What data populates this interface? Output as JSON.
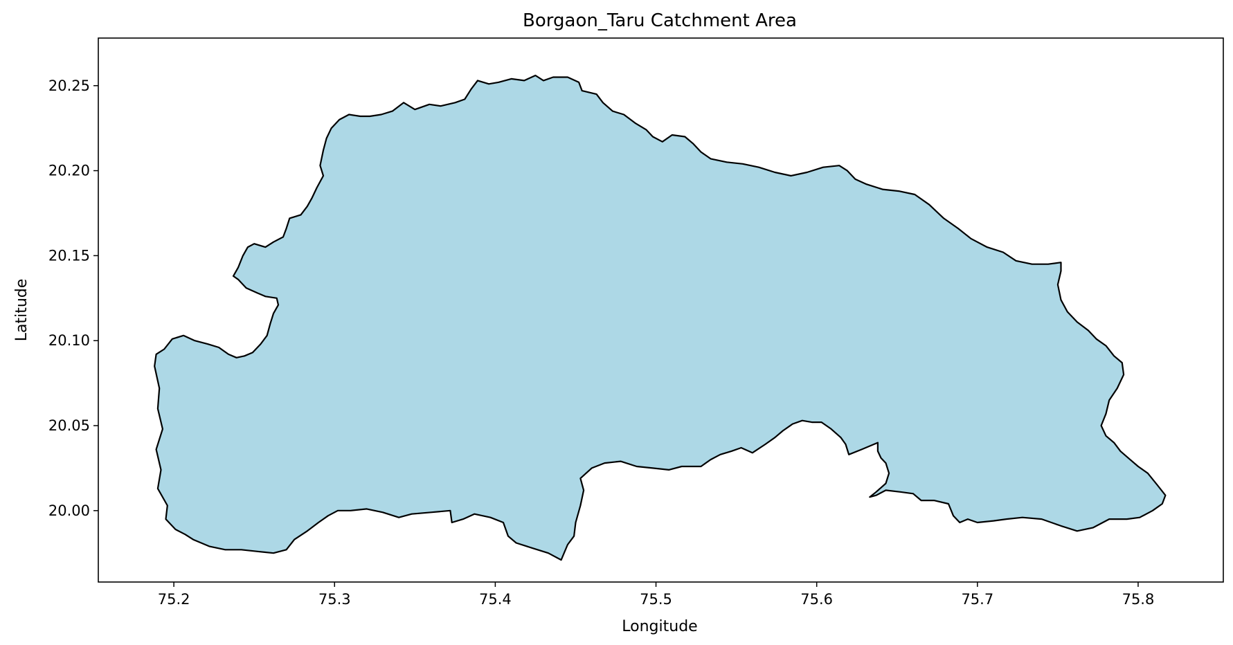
{
  "chart_data": {
    "type": "map",
    "title": "Borgaon_Taru Catchment Area",
    "xlabel": "Longitude",
    "ylabel": "Latitude",
    "xlim": [
      75.153,
      75.853
    ],
    "ylim": [
      19.958,
      20.278
    ],
    "xticks": [
      75.2,
      75.3,
      75.4,
      75.5,
      75.6,
      75.7,
      75.8
    ],
    "yticks": [
      20.0,
      20.05,
      20.1,
      20.15,
      20.2,
      20.25
    ],
    "fill_color": "#ADD8E6",
    "edge_color": "#000000",
    "grid": false,
    "boundary": [
      [
        75.188,
        20.085
      ],
      [
        75.191,
        20.072
      ],
      [
        75.19,
        20.06
      ],
      [
        75.193,
        20.048
      ],
      [
        75.189,
        20.036
      ],
      [
        75.192,
        20.024
      ],
      [
        75.19,
        20.013
      ],
      [
        75.196,
        20.003
      ],
      [
        75.195,
        19.995
      ],
      [
        75.201,
        19.989
      ],
      [
        75.207,
        19.986
      ],
      [
        75.212,
        19.983
      ],
      [
        75.222,
        19.979
      ],
      [
        75.232,
        19.977
      ],
      [
        75.242,
        19.977
      ],
      [
        75.252,
        19.976
      ],
      [
        75.262,
        19.975
      ],
      [
        75.27,
        19.977
      ],
      [
        75.275,
        19.983
      ],
      [
        75.283,
        19.988
      ],
      [
        75.29,
        19.993
      ],
      [
        75.296,
        19.997
      ],
      [
        75.302,
        20.0
      ],
      [
        75.31,
        20.0
      ],
      [
        75.32,
        20.001
      ],
      [
        75.33,
        19.999
      ],
      [
        75.34,
        19.996
      ],
      [
        75.348,
        19.998
      ],
      [
        75.36,
        19.999
      ],
      [
        75.372,
        20.0
      ],
      [
        75.373,
        19.993
      ],
      [
        75.38,
        19.995
      ],
      [
        75.387,
        19.998
      ],
      [
        75.397,
        19.996
      ],
      [
        75.405,
        19.993
      ],
      [
        75.408,
        19.985
      ],
      [
        75.413,
        19.981
      ],
      [
        75.423,
        19.978
      ],
      [
        75.433,
        19.975
      ],
      [
        75.441,
        19.971
      ],
      [
        75.445,
        19.98
      ],
      [
        75.449,
        19.985
      ],
      [
        75.45,
        19.993
      ],
      [
        75.453,
        20.003
      ],
      [
        75.455,
        20.012
      ],
      [
        75.453,
        20.019
      ],
      [
        75.46,
        20.025
      ],
      [
        75.468,
        20.028
      ],
      [
        75.478,
        20.029
      ],
      [
        75.488,
        20.026
      ],
      [
        75.498,
        20.025
      ],
      [
        75.508,
        20.024
      ],
      [
        75.516,
        20.026
      ],
      [
        75.528,
        20.026
      ],
      [
        75.534,
        20.03
      ],
      [
        75.54,
        20.033
      ],
      [
        75.547,
        20.035
      ],
      [
        75.553,
        20.037
      ],
      [
        75.56,
        20.034
      ],
      [
        75.568,
        20.039
      ],
      [
        75.574,
        20.043
      ],
      [
        75.579,
        20.047
      ],
      [
        75.585,
        20.051
      ],
      [
        75.591,
        20.053
      ],
      [
        75.597,
        20.052
      ],
      [
        75.603,
        20.052
      ],
      [
        75.609,
        20.048
      ],
      [
        75.615,
        20.043
      ],
      [
        75.618,
        20.039
      ],
      [
        75.62,
        20.033
      ],
      [
        75.628,
        20.036
      ],
      [
        75.633,
        20.038
      ],
      [
        75.638,
        20.04
      ],
      [
        75.638,
        20.035
      ],
      [
        75.64,
        20.031
      ],
      [
        75.643,
        20.028
      ],
      [
        75.645,
        20.022
      ],
      [
        75.643,
        20.016
      ],
      [
        75.637,
        20.011
      ],
      [
        75.633,
        20.008
      ],
      [
        75.637,
        20.009
      ],
      [
        75.643,
        20.012
      ],
      [
        75.652,
        20.011
      ],
      [
        75.66,
        20.01
      ],
      [
        75.665,
        20.006
      ],
      [
        75.673,
        20.006
      ],
      [
        75.682,
        20.004
      ],
      [
        75.685,
        19.997
      ],
      [
        75.689,
        19.993
      ],
      [
        75.694,
        19.995
      ],
      [
        75.7,
        19.993
      ],
      [
        75.71,
        19.994
      ],
      [
        75.718,
        19.995
      ],
      [
        75.728,
        19.996
      ],
      [
        75.74,
        19.995
      ],
      [
        75.752,
        19.991
      ],
      [
        75.762,
        19.988
      ],
      [
        75.772,
        19.99
      ],
      [
        75.782,
        19.995
      ],
      [
        75.793,
        19.995
      ],
      [
        75.801,
        19.996
      ],
      [
        75.809,
        20.0
      ],
      [
        75.815,
        20.004
      ],
      [
        75.817,
        20.009
      ],
      [
        75.812,
        20.015
      ],
      [
        75.806,
        20.022
      ],
      [
        75.8,
        20.026
      ],
      [
        75.795,
        20.03
      ],
      [
        75.789,
        20.035
      ],
      [
        75.785,
        20.04
      ],
      [
        75.78,
        20.044
      ],
      [
        75.777,
        20.05
      ],
      [
        75.78,
        20.057
      ],
      [
        75.782,
        20.065
      ],
      [
        75.787,
        20.072
      ],
      [
        75.791,
        20.08
      ],
      [
        75.79,
        20.087
      ],
      [
        75.785,
        20.091
      ],
      [
        75.78,
        20.097
      ],
      [
        75.774,
        20.101
      ],
      [
        75.769,
        20.106
      ],
      [
        75.762,
        20.111
      ],
      [
        75.756,
        20.117
      ],
      [
        75.752,
        20.124
      ],
      [
        75.75,
        20.133
      ],
      [
        75.752,
        20.141
      ],
      [
        75.752,
        20.146
      ],
      [
        75.744,
        20.145
      ],
      [
        75.734,
        20.145
      ],
      [
        75.724,
        20.147
      ],
      [
        75.716,
        20.152
      ],
      [
        75.706,
        20.155
      ],
      [
        75.696,
        20.16
      ],
      [
        75.688,
        20.166
      ],
      [
        75.679,
        20.172
      ],
      [
        75.67,
        20.18
      ],
      [
        75.661,
        20.186
      ],
      [
        75.651,
        20.188
      ],
      [
        75.641,
        20.189
      ],
      [
        75.631,
        20.192
      ],
      [
        75.624,
        20.195
      ],
      [
        75.619,
        20.2
      ],
      [
        75.614,
        20.203
      ],
      [
        75.604,
        20.202
      ],
      [
        75.594,
        20.199
      ],
      [
        75.584,
        20.197
      ],
      [
        75.574,
        20.199
      ],
      [
        75.564,
        20.202
      ],
      [
        75.554,
        20.204
      ],
      [
        75.544,
        20.205
      ],
      [
        75.534,
        20.207
      ],
      [
        75.528,
        20.211
      ],
      [
        75.523,
        20.216
      ],
      [
        75.518,
        20.22
      ],
      [
        75.51,
        20.221
      ],
      [
        75.504,
        20.217
      ],
      [
        75.498,
        20.22
      ],
      [
        75.494,
        20.224
      ],
      [
        75.487,
        20.228
      ],
      [
        75.48,
        20.233
      ],
      [
        75.473,
        20.235
      ],
      [
        75.467,
        20.24
      ],
      [
        75.463,
        20.245
      ],
      [
        75.454,
        20.247
      ],
      [
        75.452,
        20.252
      ],
      [
        75.445,
        20.255
      ],
      [
        75.436,
        20.255
      ],
      [
        75.43,
        20.253
      ],
      [
        75.425,
        20.256
      ],
      [
        75.418,
        20.253
      ],
      [
        75.41,
        20.254
      ],
      [
        75.402,
        20.252
      ],
      [
        75.396,
        20.251
      ],
      [
        75.389,
        20.253
      ],
      [
        75.385,
        20.248
      ],
      [
        75.381,
        20.242
      ],
      [
        75.375,
        20.24
      ],
      [
        75.366,
        20.238
      ],
      [
        75.359,
        20.239
      ],
      [
        75.35,
        20.236
      ],
      [
        75.343,
        20.24
      ],
      [
        75.336,
        20.235
      ],
      [
        75.329,
        20.233
      ],
      [
        75.322,
        20.232
      ],
      [
        75.316,
        20.232
      ],
      [
        75.309,
        20.233
      ],
      [
        75.303,
        20.23
      ],
      [
        75.298,
        20.225
      ],
      [
        75.295,
        20.219
      ],
      [
        75.293,
        20.212
      ],
      [
        75.291,
        20.203
      ],
      [
        75.293,
        20.197
      ],
      [
        75.289,
        20.19
      ],
      [
        75.286,
        20.184
      ],
      [
        75.283,
        20.179
      ],
      [
        75.279,
        20.174
      ],
      [
        75.272,
        20.172
      ],
      [
        75.27,
        20.166
      ],
      [
        75.268,
        20.161
      ],
      [
        75.262,
        20.158
      ],
      [
        75.257,
        20.155
      ],
      [
        75.25,
        20.157
      ],
      [
        75.246,
        20.155
      ],
      [
        75.243,
        20.15
      ],
      [
        75.24,
        20.143
      ],
      [
        75.237,
        20.138
      ],
      [
        75.24,
        20.136
      ],
      [
        75.245,
        20.131
      ],
      [
        75.252,
        20.128
      ],
      [
        75.257,
        20.126
      ],
      [
        75.264,
        20.125
      ],
      [
        75.265,
        20.121
      ],
      [
        75.262,
        20.116
      ],
      [
        75.26,
        20.11
      ],
      [
        75.258,
        20.103
      ],
      [
        75.254,
        20.098
      ],
      [
        75.249,
        20.093
      ],
      [
        75.244,
        20.091
      ],
      [
        75.239,
        20.09
      ],
      [
        75.234,
        20.092
      ],
      [
        75.228,
        20.096
      ],
      [
        75.221,
        20.098
      ],
      [
        75.213,
        20.1
      ],
      [
        75.206,
        20.103
      ],
      [
        75.199,
        20.101
      ],
      [
        75.194,
        20.095
      ],
      [
        75.189,
        20.092
      ]
    ]
  }
}
